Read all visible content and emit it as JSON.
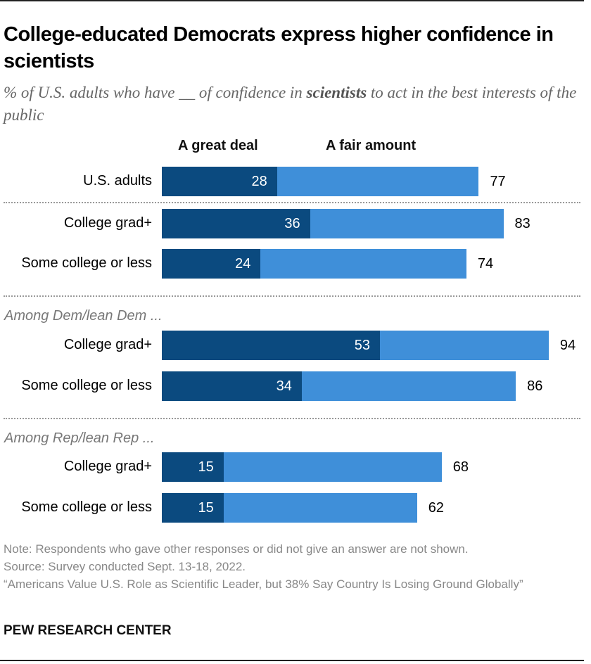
{
  "chart_data": {
    "type": "bar",
    "orientation": "horizontal",
    "stacked": true,
    "title": "College-educated Democrats express higher confidence in scientists",
    "subtitle_parts": [
      "% of U.S. adults who have __ of confidence in ",
      "scientists",
      " to act in the best interests of the public"
    ],
    "legend": [
      "A great deal",
      "A fair amount"
    ],
    "legend_placement": "top",
    "colors": {
      "great_deal": "#0b4a7f",
      "fair_amount": "#3f8fd9"
    },
    "groups": [
      {
        "label": "",
        "rows": [
          {
            "label": "U.S. adults",
            "great_deal": 28,
            "total": 77
          }
        ]
      },
      {
        "label": "",
        "rows": [
          {
            "label": "College grad+",
            "great_deal": 36,
            "total": 83
          },
          {
            "label": "Some college or less",
            "great_deal": 24,
            "total": 74
          }
        ]
      },
      {
        "label": "Among Dem/lean Dem ...",
        "rows": [
          {
            "label": "College grad+",
            "great_deal": 53,
            "total": 94
          },
          {
            "label": "Some college or less",
            "great_deal": 34,
            "total": 86
          }
        ]
      },
      {
        "label": "Among Rep/lean Rep ...",
        "rows": [
          {
            "label": "College grad+",
            "great_deal": 15,
            "total": 68
          },
          {
            "label": "Some college or less",
            "great_deal": 15,
            "total": 62
          }
        ]
      }
    ],
    "grid": false
  },
  "notes": {
    "note": "Note: Respondents who gave other responses or did not give an answer are not shown.",
    "source": "Source: Survey conducted Sept. 13-18, 2022.",
    "report": "“Americans Value U.S. Role as Scientific Leader, but 38% Say Country Is Losing Ground Globally”"
  },
  "brand": "PEW RESEARCH CENTER"
}
